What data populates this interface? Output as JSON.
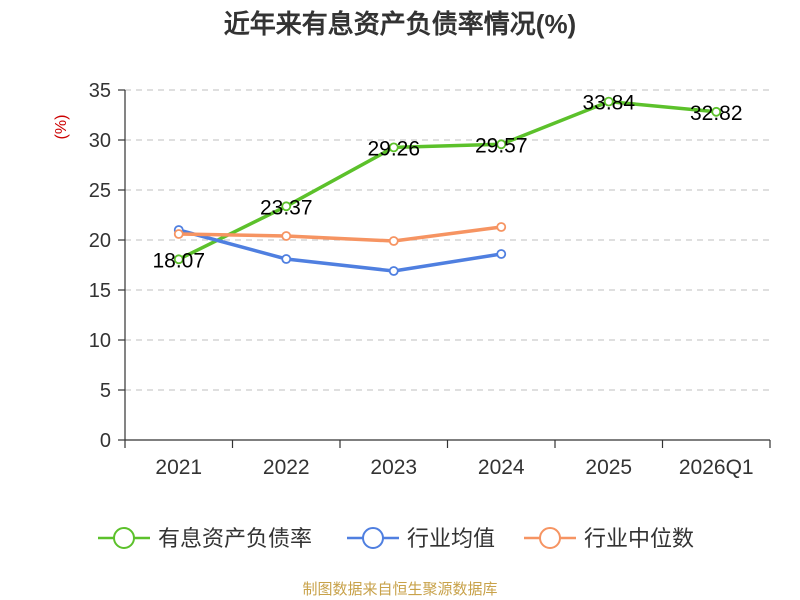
{
  "chart_data": {
    "type": "line",
    "title": "近年来有息资产负债率情况(%)",
    "ylabel": "(%)",
    "xlabel": "",
    "ylim": [
      0,
      35
    ],
    "yticks": [
      0,
      5,
      10,
      15,
      20,
      25,
      30,
      35
    ],
    "grid": true,
    "categories": [
      "2021",
      "2022",
      "2023",
      "2024",
      "2025",
      "2026Q1"
    ],
    "series": [
      {
        "name": "有息资产负债率",
        "color": "#5cc12b",
        "values": [
          18.07,
          23.37,
          29.26,
          29.57,
          33.84,
          32.82
        ],
        "labels": [
          "18.07",
          "23.37",
          "29.26",
          "29.57",
          "33.84",
          "32.82"
        ]
      },
      {
        "name": "行业均值",
        "color": "#4f7fe0",
        "values": [
          21.0,
          18.1,
          16.9,
          18.6,
          null,
          null
        ]
      },
      {
        "name": "行业中位数",
        "color": "#f69462",
        "values": [
          20.6,
          20.4,
          19.9,
          21.3,
          null,
          null
        ]
      }
    ],
    "legend_position": "bottom"
  },
  "source": "制图数据来自恒生聚源数据库"
}
